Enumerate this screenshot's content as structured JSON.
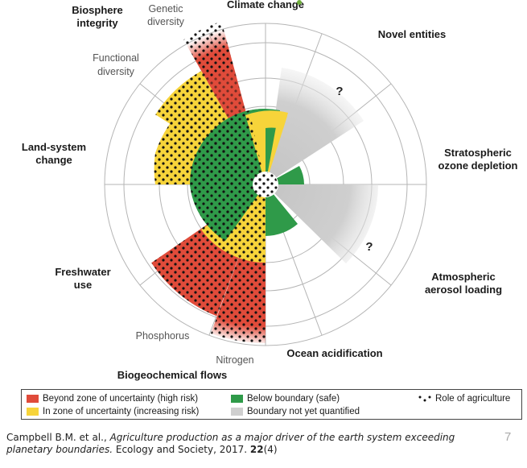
{
  "labels": {
    "climate_change": "Climate change",
    "novel_entities": "Novel entities",
    "stratospheric_line1": "Stratospheric",
    "stratospheric_line2": "ozone depletion",
    "aerosol_line1": "Atmospheric",
    "aerosol_line2": "aerosol loading",
    "ocean_acidification": "Ocean acidification",
    "biogeochemical_flows": "Biogeochemical flows",
    "nitrogen": "Nitrogen",
    "phosphorus": "Phosphorus",
    "freshwater_line1": "Freshwater",
    "freshwater_line2": "use",
    "land_line1": "Land-system",
    "land_line2": "change",
    "biosphere_line1": "Biosphere",
    "biosphere_line2": "integrity",
    "functional_line1": "Functional",
    "functional_line2": "diversity",
    "genetic_line1": "Genetic",
    "genetic_line2": "diversity",
    "question_mark": "?"
  },
  "legend": {
    "red": "Beyond zone of uncertainty (high risk)",
    "yellow": "In zone of uncertainty (increasing risk)",
    "green": "Below boundary (safe)",
    "gray": "Boundary not yet quantified",
    "agriculture": "Role of agriculture"
  },
  "colors": {
    "red": "#e04b3a",
    "yellow": "#f7d43a",
    "green": "#2f9a49",
    "gray": "#cfcfcf",
    "dots": "#111111"
  },
  "citation": {
    "authors": "Campbell B.M. et al., ",
    "title": "Agriculture production as a major driver of the earth system exceeding planetary boundaries.",
    "journal": " Ecology and Society, 2017. ",
    "volume": "22",
    "issue": "(4)"
  },
  "slide_number": "7"
}
